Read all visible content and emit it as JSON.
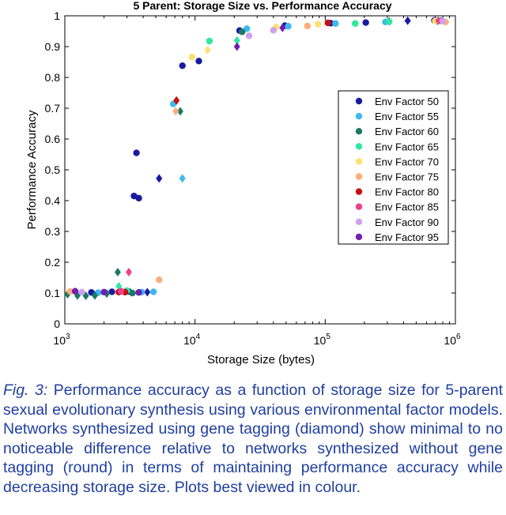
{
  "chart_data": {
    "type": "scatter",
    "title": "5 Parent: Storage Size vs. Performance Accuracy",
    "xlabel": "Storage Size (bytes)",
    "ylabel": "Performance Accuracy",
    "xscale": "log",
    "xlim": [
      1000,
      1000000
    ],
    "ylim": [
      0,
      1
    ],
    "x_tick_labels": [
      "10^3",
      "10^4",
      "10^5",
      "10^6"
    ],
    "y_tick_labels": [
      "0",
      "0.1",
      "0.2",
      "0.3",
      "0.4",
      "0.5",
      "0.6",
      "0.7",
      "0.8",
      "0.9",
      "1"
    ],
    "legend_position": "right",
    "marker_note": "diamond = with gene tagging, round = without gene tagging",
    "series": [
      {
        "name": "Env Factor 50",
        "color": "#1a1aa0",
        "points": [
          {
            "x": 3400,
            "y": 0.415,
            "m": "c"
          },
          {
            "x": 3550,
            "y": 0.555,
            "m": "c"
          },
          {
            "x": 3700,
            "y": 0.408,
            "m": "c"
          },
          {
            "x": 5300,
            "y": 0.472,
            "m": "d"
          },
          {
            "x": 8000,
            "y": 0.838,
            "m": "c"
          },
          {
            "x": 10700,
            "y": 0.853,
            "m": "c"
          },
          {
            "x": 22000,
            "y": 0.952,
            "m": "c"
          },
          {
            "x": 49000,
            "y": 0.968,
            "m": "c"
          },
          {
            "x": 110000,
            "y": 0.976,
            "m": "c"
          },
          {
            "x": 205000,
            "y": 0.978,
            "m": "c"
          },
          {
            "x": 430000,
            "y": 0.984,
            "m": "d"
          },
          {
            "x": 690000,
            "y": 0.985,
            "m": "c"
          },
          {
            "x": 1600,
            "y": 0.102,
            "m": "c"
          },
          {
            "x": 2300,
            "y": 0.104,
            "m": "c"
          },
          {
            "x": 3100,
            "y": 0.105,
            "m": "c"
          },
          {
            "x": 4300,
            "y": 0.103,
            "m": "d"
          }
        ]
      },
      {
        "name": "Env Factor 55",
        "color": "#3fb8f0",
        "points": [
          {
            "x": 6800,
            "y": 0.714,
            "m": "c"
          },
          {
            "x": 8000,
            "y": 0.472,
            "m": "d"
          },
          {
            "x": 25000,
            "y": 0.958,
            "m": "c"
          },
          {
            "x": 52000,
            "y": 0.966,
            "m": "c"
          },
          {
            "x": 120000,
            "y": 0.975,
            "m": "c"
          },
          {
            "x": 290000,
            "y": 0.98,
            "m": "c"
          },
          {
            "x": 720000,
            "y": 0.983,
            "m": "d"
          },
          {
            "x": 1800,
            "y": 0.101,
            "m": "c"
          },
          {
            "x": 3900,
            "y": 0.103,
            "m": "c"
          },
          {
            "x": 4800,
            "y": 0.104,
            "m": "c"
          }
        ]
      },
      {
        "name": "Env Factor 60",
        "color": "#1a7a66",
        "points": [
          {
            "x": 2550,
            "y": 0.168,
            "m": "d"
          },
          {
            "x": 7700,
            "y": 0.69,
            "m": "d"
          },
          {
            "x": 23000,
            "y": 0.948,
            "m": "c"
          },
          {
            "x": 310000,
            "y": 0.982,
            "m": "d"
          },
          {
            "x": 780000,
            "y": 0.984,
            "m": "c"
          },
          {
            "x": 1050,
            "y": 0.096,
            "m": "d"
          },
          {
            "x": 1250,
            "y": 0.092,
            "m": "d"
          },
          {
            "x": 1450,
            "y": 0.091,
            "m": "d"
          },
          {
            "x": 1700,
            "y": 0.092,
            "m": "d"
          },
          {
            "x": 2100,
            "y": 0.098,
            "m": "d"
          },
          {
            "x": 3300,
            "y": 0.1,
            "m": "c"
          }
        ]
      },
      {
        "name": "Env Factor 65",
        "color": "#2ee8a0",
        "points": [
          {
            "x": 12900,
            "y": 0.918,
            "m": "c"
          },
          {
            "x": 21000,
            "y": 0.92,
            "m": "d"
          },
          {
            "x": 170000,
            "y": 0.975,
            "m": "c"
          },
          {
            "x": 310000,
            "y": 0.981,
            "m": "c"
          },
          {
            "x": 2600,
            "y": 0.122,
            "m": "d"
          },
          {
            "x": 3000,
            "y": 0.108,
            "m": "c"
          }
        ]
      },
      {
        "name": "Env Factor 70",
        "color": "#ffe070",
        "points": [
          {
            "x": 9500,
            "y": 0.866,
            "m": "c"
          },
          {
            "x": 12500,
            "y": 0.889,
            "m": "d"
          },
          {
            "x": 42000,
            "y": 0.963,
            "m": "c"
          },
          {
            "x": 88000,
            "y": 0.973,
            "m": "c"
          },
          {
            "x": 700000,
            "y": 0.983,
            "m": "c"
          }
        ]
      },
      {
        "name": "Env Factor 75",
        "color": "#ffae78",
        "points": [
          {
            "x": 5300,
            "y": 0.143,
            "m": "c"
          },
          {
            "x": 7100,
            "y": 0.69,
            "m": "d"
          },
          {
            "x": 73000,
            "y": 0.967,
            "m": "c"
          },
          {
            "x": 840000,
            "y": 0.98,
            "m": "c"
          },
          {
            "x": 1100,
            "y": 0.105,
            "m": "c"
          }
        ]
      },
      {
        "name": "Env Factor 80",
        "color": "#c41010",
        "points": [
          {
            "x": 7200,
            "y": 0.725,
            "m": "d"
          },
          {
            "x": 2600,
            "y": 0.103,
            "m": "c"
          },
          {
            "x": 2900,
            "y": 0.103,
            "m": "c"
          },
          {
            "x": 105000,
            "y": 0.977,
            "m": "c"
          }
        ]
      },
      {
        "name": "Env Factor 85",
        "color": "#f0408a",
        "points": [
          {
            "x": 3100,
            "y": 0.168,
            "m": "d"
          },
          {
            "x": 2700,
            "y": 0.106,
            "m": "c"
          },
          {
            "x": 740000,
            "y": 0.984,
            "m": "d"
          }
        ]
      },
      {
        "name": "Env Factor 90",
        "color": "#d0a0f0",
        "points": [
          {
            "x": 26000,
            "y": 0.935,
            "m": "c"
          },
          {
            "x": 40000,
            "y": 0.953,
            "m": "c"
          },
          {
            "x": 1350,
            "y": 0.103,
            "m": "c"
          },
          {
            "x": 800000,
            "y": 0.983,
            "m": "c"
          }
        ]
      },
      {
        "name": "Env Factor 95",
        "color": "#7020b0",
        "points": [
          {
            "x": 21000,
            "y": 0.9,
            "m": "d"
          },
          {
            "x": 47000,
            "y": 0.961,
            "m": "d"
          },
          {
            "x": 1200,
            "y": 0.106,
            "m": "c"
          },
          {
            "x": 2000,
            "y": 0.103,
            "m": "c"
          },
          {
            "x": 3700,
            "y": 0.102,
            "m": "c"
          }
        ]
      }
    ]
  },
  "caption": {
    "label": "Fig. 3:",
    "text": "Performance accuracy as a function of storage size for 5-parent sexual evolutionary synthesis using various environmental factor models. Networks synthesized using gene tagging (diamond) show minimal to no noticeable difference relative to networks synthesized without gene tagging (round) in terms of maintaining performance accuracy while decreasing storage size. Plots best viewed in colour."
  }
}
